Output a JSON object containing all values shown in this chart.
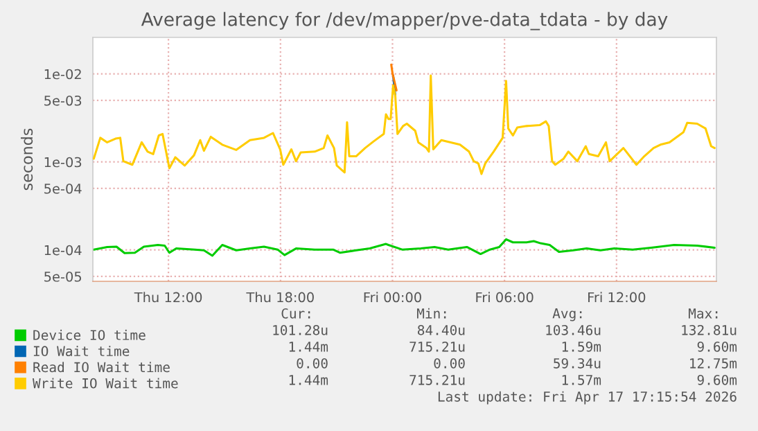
{
  "chart_data": {
    "type": "line",
    "title": "Average latency for /dev/mapper/pve-data_tdata - by day",
    "ylabel": "seconds",
    "log": "y",
    "grid": true,
    "legend": "bottom",
    "xlim": [
      "2026-04-16T07:57",
      "2026-04-17T17:21"
    ],
    "xticks": [
      {
        "value": "2026-04-16T12:00",
        "label": "Thu 12:00"
      },
      {
        "value": "2026-04-16T18:00",
        "label": "Thu 18:00"
      },
      {
        "value": "2026-04-17T00:00",
        "label": "Fri 00:00"
      },
      {
        "value": "2026-04-17T06:00",
        "label": "Fri 06:00"
      },
      {
        "value": "2026-04-17T12:00",
        "label": "Fri 12:00"
      }
    ],
    "ylim": [
      4.4e-05,
      0.026
    ],
    "yticks": [
      {
        "value": 0.01,
        "label": "1e-02"
      },
      {
        "value": 0.005,
        "label": "5e-03"
      },
      {
        "value": 0.001,
        "label": "1e-03"
      },
      {
        "value": 0.0005,
        "label": "5e-04"
      },
      {
        "value": 0.0001,
        "label": "1e-04"
      },
      {
        "value": 5e-05,
        "label": "5e-05"
      }
    ],
    "series": [
      {
        "name": "Device IO time",
        "color": "#00cc00",
        "x": [
          "2026-04-16T08:00",
          "2026-04-16T08:43",
          "2026-04-16T09:13",
          "2026-04-16T09:39",
          "2026-04-16T10:12",
          "2026-04-16T10:41",
          "2026-04-16T11:26",
          "2026-04-16T11:48",
          "2026-04-16T12:03",
          "2026-04-16T12:25",
          "2026-04-16T13:25",
          "2026-04-16T13:54",
          "2026-04-16T14:21",
          "2026-04-16T14:53",
          "2026-04-16T15:38",
          "2026-04-16T16:22",
          "2026-04-16T17:07",
          "2026-04-16T17:51",
          "2026-04-16T18:13",
          "2026-04-16T18:50",
          "2026-04-16T19:50",
          "2026-04-16T20:49",
          "2026-04-16T21:11",
          "2026-04-16T22:03",
          "2026-04-16T22:47",
          "2026-04-16T23:39",
          "2026-04-16T23:47",
          "2026-04-17T00:31",
          "2026-04-17T01:31",
          "2026-04-17T02:15",
          "2026-04-17T02:59",
          "2026-04-17T03:59",
          "2026-04-17T04:43",
          "2026-04-17T05:13",
          "2026-04-17T05:43",
          "2026-04-17T06:05",
          "2026-04-17T06:27",
          "2026-04-17T07:11",
          "2026-04-17T07:34",
          "2026-04-17T07:56",
          "2026-04-17T08:25",
          "2026-04-17T08:55",
          "2026-04-17T09:40",
          "2026-04-17T10:24",
          "2026-04-17T11:08",
          "2026-04-17T11:53",
          "2026-04-17T12:52",
          "2026-04-17T13:51",
          "2026-04-17T15:05",
          "2026-04-17T16:19",
          "2026-04-17T17:15"
        ],
        "values": [
          0.000101,
          0.000108,
          0.000109,
          9.2e-05,
          9.3e-05,
          0.000109,
          0.000114,
          0.000112,
          9.3e-05,
          0.000104,
          0.000101,
          9.9e-05,
          8.6e-05,
          0.000114,
          9.9e-05,
          0.000104,
          0.000109,
          0.000101,
          8.75e-05,
          0.000104,
          0.000101,
          0.000101,
          9.3e-05,
          9.9e-05,
          0.000104,
          0.000117,
          0.000114,
          0.000101,
          0.000104,
          0.000108,
          0.000101,
          0.000108,
          9e-05,
          0.000101,
          0.000108,
          0.000132,
          0.000122,
          0.000122,
          0.000126,
          0.000119,
          0.000114,
          9.5e-05,
          9.9e-05,
          0.000104,
          9.9e-05,
          0.000104,
          0.000101,
          0.000106,
          0.000114,
          0.000112,
          0.000106
        ]
      },
      {
        "name": "IO Wait time",
        "color": "#0066b3",
        "x": [
          "2026-04-17T00:02",
          "2026-04-17T00:09"
        ],
        "values": [
          0.0096,
          0.00564
        ]
      },
      {
        "name": "Read IO Wait time",
        "color": "#ff8000",
        "x": [
          "2026-04-16T23:56",
          "2026-04-17T00:00",
          "2026-04-17T00:13"
        ],
        "values": [
          0.01275,
          0.0102,
          0.0065
        ]
      },
      {
        "name": "Write IO Wait time",
        "color": "#ffcc00",
        "x": [
          "2026-04-16T08:00",
          "2026-04-16T08:21",
          "2026-04-16T08:43",
          "2026-04-16T09:10",
          "2026-04-16T09:25",
          "2026-04-16T09:35",
          "2026-04-16T10:04",
          "2026-04-16T10:34",
          "2026-04-16T10:53",
          "2026-04-16T11:11",
          "2026-04-16T11:29",
          "2026-04-16T11:41",
          "2026-04-16T12:03",
          "2026-04-16T12:22",
          "2026-04-16T12:52",
          "2026-04-16T13:22",
          "2026-04-16T13:42",
          "2026-04-16T13:54",
          "2026-04-16T14:16",
          "2026-04-16T14:53",
          "2026-04-16T15:38",
          "2026-04-16T16:22",
          "2026-04-16T17:07",
          "2026-04-16T17:36",
          "2026-04-16T17:59",
          "2026-04-16T18:09",
          "2026-04-16T18:35",
          "2026-04-16T18:50",
          "2026-04-16T19:05",
          "2026-04-16T19:50",
          "2026-04-16T20:19",
          "2026-04-16T20:31",
          "2026-04-16T20:52",
          "2026-04-16T21:01",
          "2026-04-16T21:26",
          "2026-04-16T21:34",
          "2026-04-16T21:41",
          "2026-04-16T22:03",
          "2026-04-16T22:32",
          "2026-04-16T22:59",
          "2026-04-16T23:32",
          "2026-04-16T23:39",
          "2026-04-16T23:47",
          "2026-04-16T23:54",
          "2026-04-17T00:02",
          "2026-04-17T00:09",
          "2026-04-17T00:16",
          "2026-04-17T00:34",
          "2026-04-17T00:46",
          "2026-04-17T01:13",
          "2026-04-17T01:23",
          "2026-04-17T01:49",
          "2026-04-17T01:57",
          "2026-04-17T02:03",
          "2026-04-17T02:11",
          "2026-04-17T02:37",
          "2026-04-17T03:07",
          "2026-04-17T03:37",
          "2026-04-17T04:06",
          "2026-04-17T04:21",
          "2026-04-17T04:36",
          "2026-04-17T04:46",
          "2026-04-17T04:58",
          "2026-04-17T05:25",
          "2026-04-17T05:54",
          "2026-04-17T06:05",
          "2026-04-17T06:12",
          "2026-04-17T06:27",
          "2026-04-17T06:41",
          "2026-04-17T07:11",
          "2026-04-17T07:53",
          "2026-04-17T08:13",
          "2026-04-17T08:22",
          "2026-04-17T08:33",
          "2026-04-17T08:43",
          "2026-04-17T09:10",
          "2026-04-17T09:25",
          "2026-04-17T09:54",
          "2026-04-17T10:21",
          "2026-04-17T10:31",
          "2026-04-17T11:01",
          "2026-04-17T11:26",
          "2026-04-17T11:38",
          "2026-04-17T12:22",
          "2026-04-17T13:04",
          "2026-04-17T13:29",
          "2026-04-17T13:59",
          "2026-04-17T14:21",
          "2026-04-17T14:50",
          "2026-04-17T15:35",
          "2026-04-17T15:47",
          "2026-04-17T16:19",
          "2026-04-17T16:46",
          "2026-04-17T17:04",
          "2026-04-17T17:15"
        ],
        "values": [
          0.00109,
          0.00188,
          0.00167,
          0.00184,
          0.00188,
          0.00102,
          0.00093,
          0.00167,
          0.00131,
          0.00123,
          0.002,
          0.00208,
          0.00085,
          0.00113,
          0.00091,
          0.00119,
          0.00177,
          0.00134,
          0.00193,
          0.00157,
          0.00137,
          0.00177,
          0.00188,
          0.00213,
          0.00139,
          0.00093,
          0.00139,
          0.00102,
          0.00128,
          0.00131,
          0.00144,
          0.002,
          0.00144,
          0.00091,
          0.00076,
          0.00282,
          0.00116,
          0.00116,
          0.00144,
          0.00171,
          0.00208,
          0.00347,
          0.00307,
          0.00307,
          0.0074,
          0.00564,
          0.00208,
          0.00256,
          0.00272,
          0.00226,
          0.00167,
          0.00144,
          0.00131,
          0.0096,
          0.00139,
          0.00177,
          0.00167,
          0.00157,
          0.00131,
          0.00102,
          0.00096,
          0.00073,
          0.00096,
          0.00131,
          0.00188,
          0.00833,
          0.0024,
          0.002,
          0.00246,
          0.00256,
          0.00262,
          0.00289,
          0.00256,
          0.00102,
          0.00093,
          0.00109,
          0.00131,
          0.00102,
          0.00151,
          0.00123,
          0.00116,
          0.00167,
          0.00102,
          0.00144,
          0.00093,
          0.00116,
          0.00144,
          0.00157,
          0.00167,
          0.00218,
          0.00278,
          0.00272,
          0.0024,
          0.00151,
          0.00144
        ]
      }
    ],
    "annotations": [
      "Cur:",
      "Min:",
      "Avg:",
      "Max:",
      "101.28u",
      "84.40u",
      "103.46u",
      "132.81u",
      "1.44m",
      "715.21u",
      "1.59m",
      "9.60m",
      "0.00",
      "0.00",
      "59.34u",
      "12.75m",
      "1.44m",
      "715.21u",
      "1.57m",
      "9.60m",
      "Last update: Fri Apr 17 17:15:54 2026"
    ]
  }
}
